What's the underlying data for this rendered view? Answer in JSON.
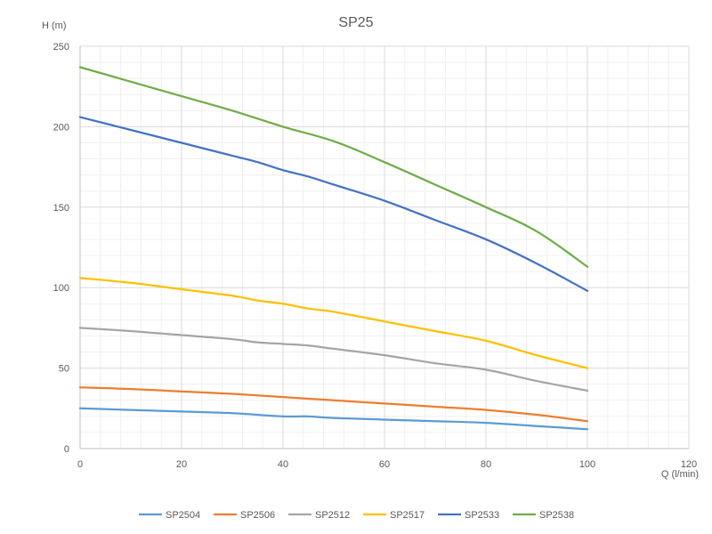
{
  "chart_data": {
    "type": "line",
    "title": "SP25",
    "xlabel": "Q (l/min)",
    "ylabel": "H (m)",
    "xlim": [
      0,
      120
    ],
    "ylim": [
      0,
      250
    ],
    "x_ticks": [
      0,
      20,
      40,
      60,
      80,
      100,
      120
    ],
    "y_ticks": [
      0,
      50,
      100,
      150,
      200,
      250
    ],
    "grid": true,
    "legend_position": "bottom",
    "series": [
      {
        "name": "SP2504",
        "color": "#5B9BD5",
        "points": [
          [
            0,
            25
          ],
          [
            10,
            24
          ],
          [
            20,
            23
          ],
          [
            30,
            22
          ],
          [
            40,
            20
          ],
          [
            45,
            20
          ],
          [
            50,
            19
          ],
          [
            60,
            18
          ],
          [
            70,
            17
          ],
          [
            80,
            16
          ],
          [
            90,
            14
          ],
          [
            100,
            12
          ]
        ]
      },
      {
        "name": "SP2506",
        "color": "#ED7D31",
        "points": [
          [
            0,
            38
          ],
          [
            10,
            37
          ],
          [
            20,
            35.5
          ],
          [
            30,
            34
          ],
          [
            40,
            32
          ],
          [
            50,
            30
          ],
          [
            60,
            28
          ],
          [
            70,
            26
          ],
          [
            80,
            24
          ],
          [
            90,
            21
          ],
          [
            100,
            17
          ]
        ]
      },
      {
        "name": "SP2512",
        "color": "#A5A5A5",
        "points": [
          [
            0,
            75
          ],
          [
            10,
            73
          ],
          [
            20,
            70.5
          ],
          [
            30,
            68
          ],
          [
            35,
            66
          ],
          [
            40,
            65
          ],
          [
            45,
            64
          ],
          [
            50,
            62
          ],
          [
            60,
            58
          ],
          [
            70,
            53
          ],
          [
            80,
            49
          ],
          [
            90,
            42
          ],
          [
            100,
            36
          ]
        ]
      },
      {
        "name": "SP2517",
        "color": "#FFC000",
        "points": [
          [
            0,
            106
          ],
          [
            10,
            103
          ],
          [
            20,
            99
          ],
          [
            30,
            95
          ],
          [
            35,
            92
          ],
          [
            40,
            90
          ],
          [
            45,
            87
          ],
          [
            50,
            85
          ],
          [
            60,
            79
          ],
          [
            70,
            73
          ],
          [
            80,
            67
          ],
          [
            90,
            58
          ],
          [
            100,
            50
          ]
        ]
      },
      {
        "name": "SP2533",
        "color": "#4472C4",
        "points": [
          [
            0,
            206
          ],
          [
            10,
            198
          ],
          [
            20,
            190
          ],
          [
            30,
            182
          ],
          [
            35,
            178
          ],
          [
            40,
            173
          ],
          [
            45,
            169
          ],
          [
            50,
            164
          ],
          [
            60,
            154
          ],
          [
            70,
            142
          ],
          [
            80,
            130
          ],
          [
            90,
            115
          ],
          [
            100,
            98
          ]
        ]
      },
      {
        "name": "SP2538",
        "color": "#70AD47",
        "points": [
          [
            0,
            237
          ],
          [
            10,
            228
          ],
          [
            20,
            219
          ],
          [
            30,
            210
          ],
          [
            40,
            200
          ],
          [
            50,
            191
          ],
          [
            60,
            178
          ],
          [
            70,
            164
          ],
          [
            80,
            150
          ],
          [
            90,
            135
          ],
          [
            100,
            113
          ]
        ]
      }
    ]
  }
}
